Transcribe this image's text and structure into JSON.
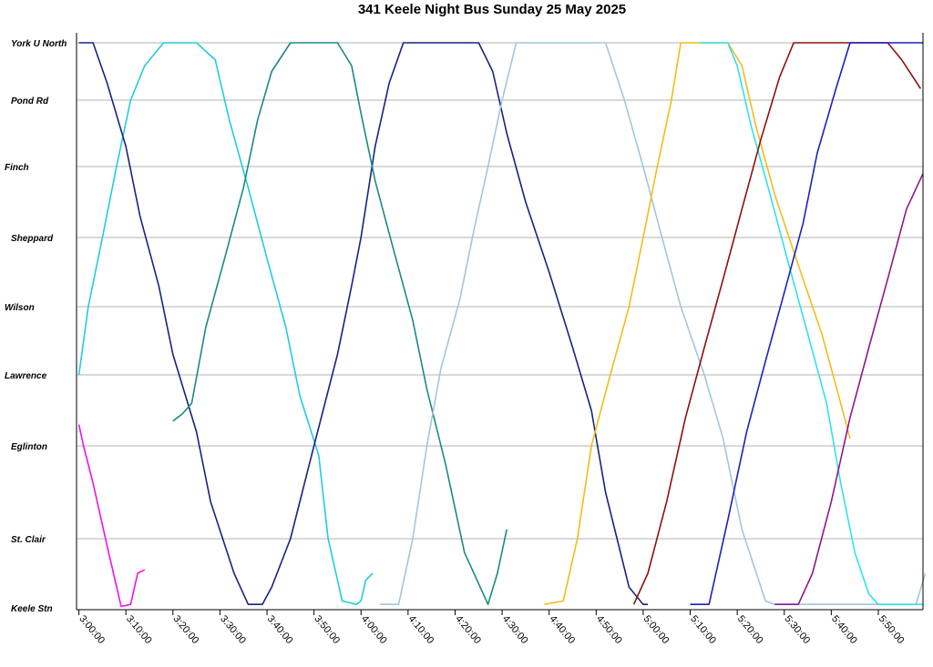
{
  "chart_data": {
    "type": "line",
    "title": "341 Keele Night Bus Sunday 25 May 2025",
    "stops": [
      "Keele Stn",
      "St. Clair",
      "Eglinton",
      "Lawrence",
      "Wilson",
      "Sheppard",
      "Finch",
      "Pond Rd",
      "York U North"
    ],
    "x_ticks": [
      "3:00:00",
      "3:10:00",
      "3:20:00",
      "3:30:00",
      "3:40:00",
      "3:50:00",
      "4:00:00",
      "4:10:00",
      "4:20:00",
      "4:30:00",
      "4:40:00",
      "4:50:00",
      "5:00:00",
      "5:10:00",
      "5:20:00",
      "5:30:00",
      "5:40:00",
      "5:50:00"
    ],
    "xlim": [
      "2:59:30",
      "5:59:30"
    ],
    "grid": "horizontal at stops",
    "series": [
      {
        "color": "#ee11ee",
        "points": [
          [
            "3:00:00",
            2.3
          ],
          [
            "3:01:00",
            2.0
          ],
          [
            "3:03:00",
            1.6
          ],
          [
            "3:06:00",
            0.9
          ],
          [
            "3:09:00",
            0.02
          ],
          [
            "3:11:00",
            0.05
          ],
          [
            "3:12:30",
            0.5
          ],
          [
            "3:14:00",
            0.55
          ]
        ]
      },
      {
        "color": "#22ccdd",
        "points": [
          [
            "3:00:00",
            3.0
          ],
          [
            "3:02:00",
            4.0
          ],
          [
            "3:05:00",
            5.0
          ],
          [
            "3:08:00",
            6.0
          ],
          [
            "3:11:00",
            7.0
          ],
          [
            "3:14:00",
            7.6
          ],
          [
            "3:18:00",
            8.95
          ],
          [
            "3:19:00",
            8.65
          ],
          [
            "3:25:00",
            8.65
          ],
          [
            "3:29:00",
            7.7
          ],
          [
            "3:32:00",
            6.7
          ],
          [
            "3:36:00",
            5.7
          ],
          [
            "3:40:00",
            4.7
          ],
          [
            "3:44:00",
            3.7
          ],
          [
            "3:47:00",
            2.7
          ],
          [
            "3:51:00",
            1.9
          ],
          [
            "3:53:00",
            1.0
          ],
          [
            "3:56:00",
            0.1
          ],
          [
            "3:59:00",
            0.05
          ],
          [
            "4:00:00",
            0.1
          ],
          [
            "4:01:00",
            0.4
          ],
          [
            "4:02:30",
            0.5
          ]
        ]
      },
      {
        "color": "#1a237e",
        "points": [
          [
            "3:00:00",
            8.5
          ],
          [
            "3:01:00",
            8.6
          ],
          [
            "3:03:00",
            8.3
          ],
          [
            "3:06:00",
            7.3
          ],
          [
            "3:10:00",
            6.3
          ],
          [
            "3:13:00",
            5.3
          ],
          [
            "3:17:00",
            4.3
          ],
          [
            "3:20:00",
            3.3
          ],
          [
            "3:25:00",
            2.2
          ],
          [
            "3:28:00",
            1.4
          ],
          [
            "3:33:00",
            0.5
          ],
          [
            "3:36:00",
            0.05
          ],
          [
            "3:39:00",
            0.05
          ],
          [
            "3:41:00",
            0.3
          ],
          [
            "3:45:00",
            1.0
          ],
          [
            "3:50:00",
            2.0
          ],
          [
            "3:55:00",
            3.3
          ],
          [
            "3:58:00",
            4.3
          ],
          [
            "4:00:00",
            5.0
          ],
          [
            "4:03:00",
            6.3
          ],
          [
            "4:06:00",
            7.3
          ],
          [
            "4:09:00",
            8.2
          ],
          [
            "4:12:00",
            8.95
          ],
          [
            "4:14:00",
            8.6
          ],
          [
            "4:25:00",
            8.6
          ],
          [
            "4:28:00",
            7.5
          ],
          [
            "4:31:00",
            6.5
          ],
          [
            "4:35:00",
            5.5
          ],
          [
            "4:40:00",
            4.5
          ],
          [
            "4:45:00",
            3.4
          ],
          [
            "4:49:00",
            2.5
          ],
          [
            "4:52:00",
            1.5
          ],
          [
            "4:57:00",
            0.3
          ],
          [
            "5:00:00",
            0.05
          ],
          [
            "5:01:00",
            0.05
          ]
        ]
      },
      {
        "color": "#1a8a86",
        "points": [
          [
            "3:20:00",
            2.35
          ],
          [
            "3:22:00",
            2.45
          ],
          [
            "3:24:00",
            2.6
          ],
          [
            "3:27:00",
            3.7
          ],
          [
            "3:31:00",
            4.7
          ],
          [
            "3:35:00",
            5.7
          ],
          [
            "3:38:00",
            6.7
          ],
          [
            "3:41:00",
            7.5
          ],
          [
            "3:45:00",
            8.5
          ],
          [
            "3:46:00",
            8.9
          ],
          [
            "3:48:00",
            8.6
          ],
          [
            "3:55:00",
            8.6
          ],
          [
            "3:58:00",
            7.6
          ],
          [
            "4:00:00",
            6.8
          ],
          [
            "4:03:00",
            5.8
          ],
          [
            "4:07:00",
            4.8
          ],
          [
            "4:11:00",
            3.8
          ],
          [
            "4:14:00",
            2.8
          ],
          [
            "4:18:00",
            1.8
          ],
          [
            "4:22:00",
            0.8
          ],
          [
            "4:27:00",
            0.05
          ],
          [
            "4:29:00",
            0.5
          ],
          [
            "4:31:00",
            1.1
          ]
        ]
      },
      {
        "color": "#a3c6de",
        "points": [
          [
            "4:04:00",
            0.05
          ],
          [
            "4:08:00",
            0.05
          ],
          [
            "4:11:00",
            1.0
          ],
          [
            "4:14:00",
            2.0
          ],
          [
            "4:17:00",
            3.1
          ],
          [
            "4:21:00",
            4.1
          ],
          [
            "4:24:00",
            5.1
          ],
          [
            "4:27:00",
            6.0
          ],
          [
            "4:30:00",
            7.0
          ],
          [
            "4:33:00",
            8.0
          ],
          [
            "4:36:00",
            8.95
          ],
          [
            "4:38:00",
            8.7
          ],
          [
            "4:48:00",
            8.7
          ],
          [
            "4:49:00",
            8.95
          ],
          [
            "4:52:00",
            8.0
          ],
          [
            "4:56:00",
            7.0
          ],
          [
            "5:00:00",
            6.0
          ],
          [
            "5:04:00",
            5.0
          ],
          [
            "5:08:00",
            4.0
          ],
          [
            "5:13:00",
            3.0
          ],
          [
            "5:17:00",
            2.1
          ],
          [
            "5:21:00",
            1.1
          ],
          [
            "5:26:00",
            0.1
          ],
          [
            "5:28:00",
            0.05
          ],
          [
            "5:58:00",
            0.05
          ],
          [
            "6:00:00",
            0.5
          ]
        ]
      },
      {
        "color": "#f2bc1a",
        "points": [
          [
            "4:39:00",
            0.05
          ],
          [
            "4:43:00",
            0.1
          ],
          [
            "4:46:00",
            1.0
          ],
          [
            "4:49:00",
            2.0
          ],
          [
            "4:53:00",
            3.0
          ],
          [
            "4:57:00",
            4.0
          ],
          [
            "5:00:00",
            5.0
          ],
          [
            "5:03:00",
            6.0
          ],
          [
            "5:06:00",
            7.0
          ],
          [
            "5:08:00",
            8.0
          ],
          [
            "5:10:00",
            8.95
          ],
          [
            "5:12:00",
            8.6
          ],
          [
            "5:18:00",
            8.6
          ],
          [
            "5:21:00",
            7.6
          ],
          [
            "5:24:00",
            6.6
          ],
          [
            "5:28:00",
            5.6
          ],
          [
            "5:33:00",
            4.6
          ],
          [
            "5:38:00",
            3.6
          ],
          [
            "5:42:00",
            2.6
          ],
          [
            "5:44:00",
            2.1
          ]
        ]
      },
      {
        "color": "#33e0ee",
        "points": [
          [
            "5:12:00",
            8.6
          ],
          [
            "5:18:00",
            8.6
          ],
          [
            "5:20:00",
            7.6
          ],
          [
            "5:23:00",
            6.6
          ],
          [
            "5:27:00",
            5.6
          ],
          [
            "5:31:00",
            4.6
          ],
          [
            "5:35:00",
            3.6
          ],
          [
            "5:39:00",
            2.6
          ],
          [
            "5:42:00",
            1.6
          ],
          [
            "5:45:00",
            0.8
          ],
          [
            "5:48:00",
            0.2
          ],
          [
            "5:50:00",
            0.05
          ],
          [
            "5:59:30",
            0.05
          ]
        ]
      },
      {
        "color": "#8b1010",
        "points": [
          [
            "4:58:00",
            0.05
          ],
          [
            "5:01:00",
            0.5
          ],
          [
            "5:05:00",
            1.4
          ],
          [
            "5:09:00",
            2.4
          ],
          [
            "5:13:00",
            3.4
          ],
          [
            "5:17:00",
            4.4
          ],
          [
            "5:21:00",
            5.4
          ],
          [
            "5:25:00",
            6.4
          ],
          [
            "5:29:00",
            7.4
          ],
          [
            "5:32:00",
            8.3
          ],
          [
            "5:34:00",
            8.95
          ],
          [
            "5:36:00",
            8.5
          ],
          [
            "5:52:00",
            8.5
          ],
          [
            "5:55:00",
            7.7
          ],
          [
            "5:59:00",
            7.2
          ]
        ]
      },
      {
        "color": "#1c22b8",
        "points": [
          [
            "5:10:00",
            0.05
          ],
          [
            "5:14:00",
            0.05
          ],
          [
            "5:18:00",
            1.2
          ],
          [
            "5:22:00",
            2.2
          ],
          [
            "5:26:00",
            3.2
          ],
          [
            "5:30:00",
            4.2
          ],
          [
            "5:34:00",
            5.2
          ],
          [
            "5:37:00",
            6.2
          ],
          [
            "5:41:00",
            7.2
          ],
          [
            "5:44:00",
            8.2
          ],
          [
            "5:47:00",
            8.85
          ],
          [
            "5:50:00",
            8.6
          ],
          [
            "5:59:30",
            8.6
          ]
        ]
      },
      {
        "color": "#8a1a8a",
        "points": [
          [
            "5:28:00",
            0.05
          ],
          [
            "5:33:00",
            0.05
          ],
          [
            "5:36:00",
            0.5
          ],
          [
            "5:40:00",
            1.4
          ],
          [
            "5:44:00",
            2.4
          ],
          [
            "5:48:00",
            3.4
          ],
          [
            "5:52:00",
            4.4
          ],
          [
            "5:56:00",
            5.4
          ],
          [
            "5:59:30",
            5.9
          ]
        ]
      }
    ]
  }
}
